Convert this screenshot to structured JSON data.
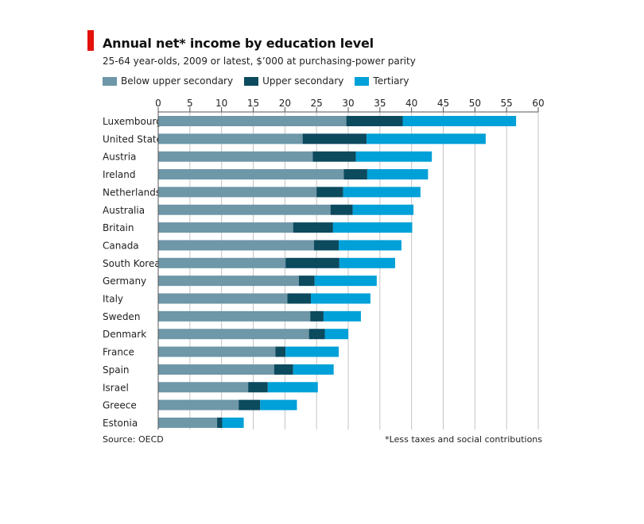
{
  "colors": {
    "accent": "#e3120b",
    "below_upper_secondary": "#6e97a8",
    "upper_secondary": "#0c4a5e",
    "tertiary": "#00a0d8",
    "grid": "#c4c4c4",
    "axis": "#555555"
  },
  "header": {
    "title": "Annual net* income by education level",
    "subtitle": "25-64 year-olds, 2009 or latest, $’000 at purchasing-power parity"
  },
  "footer": {
    "source": "Source: OECD",
    "footnote": "*Less taxes and social contributions"
  },
  "chart_data": {
    "type": "bar",
    "orientation": "horizontal",
    "stacked": true,
    "title": "Annual net* income by education level",
    "subtitle": "25-64 year-olds, 2009 or latest, $’000 at purchasing-power parity",
    "xlim": [
      0,
      60
    ],
    "x_ticks": [
      0,
      5,
      10,
      15,
      20,
      25,
      30,
      35,
      40,
      45,
      50,
      55,
      60
    ],
    "x_axis_position": "top",
    "grid": true,
    "legend": "top-left",
    "categories": [
      "Luxembourg",
      "United States",
      "Austria",
      "Ireland",
      "Netherlands",
      "Australia",
      "Britain",
      "Canada",
      "South Korea",
      "Germany",
      "Italy",
      "Sweden",
      "Denmark",
      "France",
      "Spain",
      "Israel",
      "Greece",
      "Estonia"
    ],
    "series": [
      {
        "name": "Below upper secondary",
        "values": [
          29.7,
          22.8,
          24.4,
          29.3,
          25.0,
          27.2,
          21.3,
          24.6,
          20.1,
          22.2,
          20.4,
          24.0,
          23.8,
          18.5,
          18.3,
          14.2,
          12.7,
          9.3
        ]
      },
      {
        "name": "Upper secondary",
        "values": [
          8.9,
          10.1,
          6.8,
          3.7,
          4.2,
          3.5,
          6.3,
          3.9,
          8.5,
          2.5,
          3.7,
          2.1,
          2.5,
          1.6,
          3.0,
          3.1,
          3.4,
          0.8
        ]
      },
      {
        "name": "Tertiary",
        "values": [
          17.9,
          18.8,
          12.0,
          9.6,
          12.2,
          9.6,
          12.5,
          9.9,
          8.8,
          9.8,
          9.4,
          5.9,
          3.7,
          8.4,
          6.4,
          7.9,
          5.8,
          3.4
        ]
      }
    ]
  }
}
